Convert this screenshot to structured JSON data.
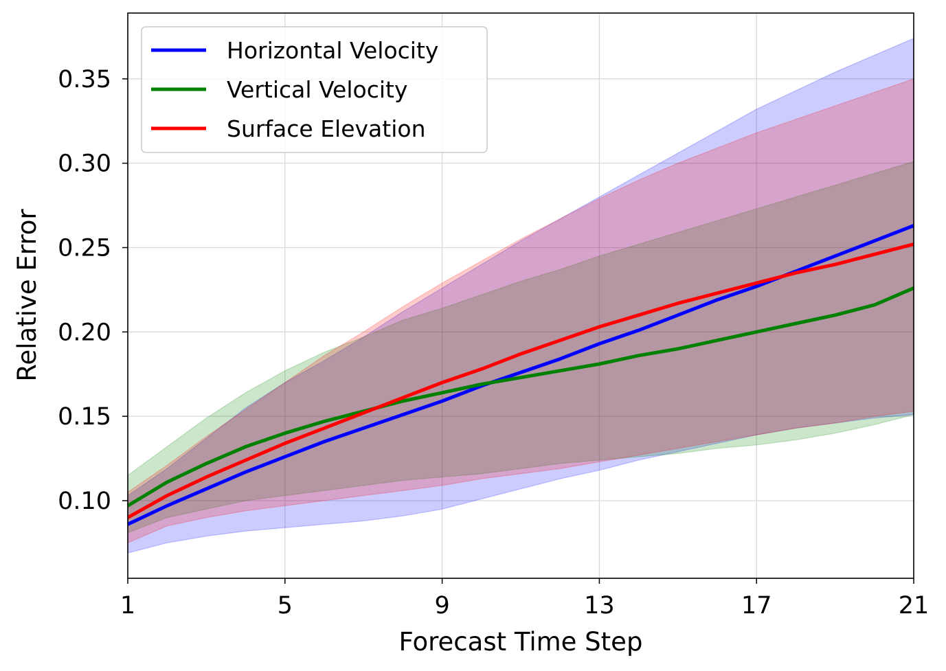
{
  "chart_data": {
    "type": "line",
    "title": "",
    "xlabel": "Forecast Time Step",
    "ylabel": "Relative Error",
    "xlim": [
      1,
      21
    ],
    "ylim": [
      0.054,
      0.389
    ],
    "grid": true,
    "legend_location": "upper-left",
    "x": [
      1,
      2,
      3,
      4,
      5,
      6,
      7,
      8,
      9,
      10,
      11,
      12,
      13,
      14,
      15,
      16,
      17,
      18,
      19,
      20,
      21
    ],
    "xticks": [
      1,
      5,
      9,
      13,
      17,
      21
    ],
    "xtick_labels": [
      "1",
      "5",
      "9",
      "13",
      "17",
      "21"
    ],
    "yticks": [
      0.1,
      0.15,
      0.2,
      0.25,
      0.3,
      0.35
    ],
    "ytick_labels": [
      "0.10",
      "0.15",
      "0.20",
      "0.25",
      "0.30",
      "0.35"
    ],
    "series": [
      {
        "name": "Horizontal Velocity",
        "color": "#0000ff",
        "values": [
          0.086,
          0.097,
          0.107,
          0.117,
          0.126,
          0.135,
          0.143,
          0.151,
          0.159,
          0.168,
          0.176,
          0.184,
          0.193,
          0.201,
          0.21,
          0.219,
          0.227,
          0.236,
          0.245,
          0.254,
          0.263
        ],
        "lower": [
          0.069,
          0.075,
          0.079,
          0.082,
          0.084,
          0.086,
          0.088,
          0.091,
          0.095,
          0.101,
          0.107,
          0.113,
          0.118,
          0.124,
          0.129,
          0.134,
          0.139,
          0.143,
          0.146,
          0.149,
          0.151
        ],
        "upper": [
          0.103,
          0.119,
          0.137,
          0.155,
          0.17,
          0.183,
          0.197,
          0.212,
          0.226,
          0.24,
          0.254,
          0.267,
          0.28,
          0.293,
          0.306,
          0.319,
          0.332,
          0.343,
          0.354,
          0.364,
          0.374
        ]
      },
      {
        "name": "Vertical Velocity",
        "color": "#008000",
        "values": [
          0.097,
          0.111,
          0.122,
          0.132,
          0.14,
          0.147,
          0.153,
          0.159,
          0.164,
          0.169,
          0.173,
          0.177,
          0.181,
          0.186,
          0.19,
          0.195,
          0.2,
          0.205,
          0.21,
          0.216,
          0.226
        ],
        "lower": [
          0.081,
          0.09,
          0.095,
          0.1,
          0.103,
          0.106,
          0.109,
          0.112,
          0.114,
          0.116,
          0.119,
          0.122,
          0.124,
          0.126,
          0.128,
          0.131,
          0.133,
          0.136,
          0.14,
          0.145,
          0.151
        ],
        "upper": [
          0.115,
          0.132,
          0.149,
          0.164,
          0.177,
          0.188,
          0.197,
          0.207,
          0.214,
          0.222,
          0.23,
          0.237,
          0.245,
          0.252,
          0.259,
          0.266,
          0.273,
          0.28,
          0.287,
          0.294,
          0.301
        ]
      },
      {
        "name": "Surface Elevation",
        "color": "#ff0000",
        "values": [
          0.09,
          0.103,
          0.114,
          0.124,
          0.134,
          0.143,
          0.152,
          0.161,
          0.17,
          0.178,
          0.187,
          0.195,
          0.203,
          0.21,
          0.217,
          0.223,
          0.229,
          0.235,
          0.24,
          0.246,
          0.252
        ],
        "lower": [
          0.075,
          0.085,
          0.09,
          0.094,
          0.097,
          0.1,
          0.103,
          0.106,
          0.109,
          0.113,
          0.116,
          0.119,
          0.123,
          0.127,
          0.131,
          0.135,
          0.139,
          0.143,
          0.146,
          0.15,
          0.153
        ],
        "upper": [
          0.105,
          0.121,
          0.138,
          0.154,
          0.17,
          0.186,
          0.2,
          0.215,
          0.229,
          0.242,
          0.255,
          0.267,
          0.279,
          0.29,
          0.3,
          0.309,
          0.318,
          0.326,
          0.334,
          0.342,
          0.35
        ]
      }
    ]
  }
}
